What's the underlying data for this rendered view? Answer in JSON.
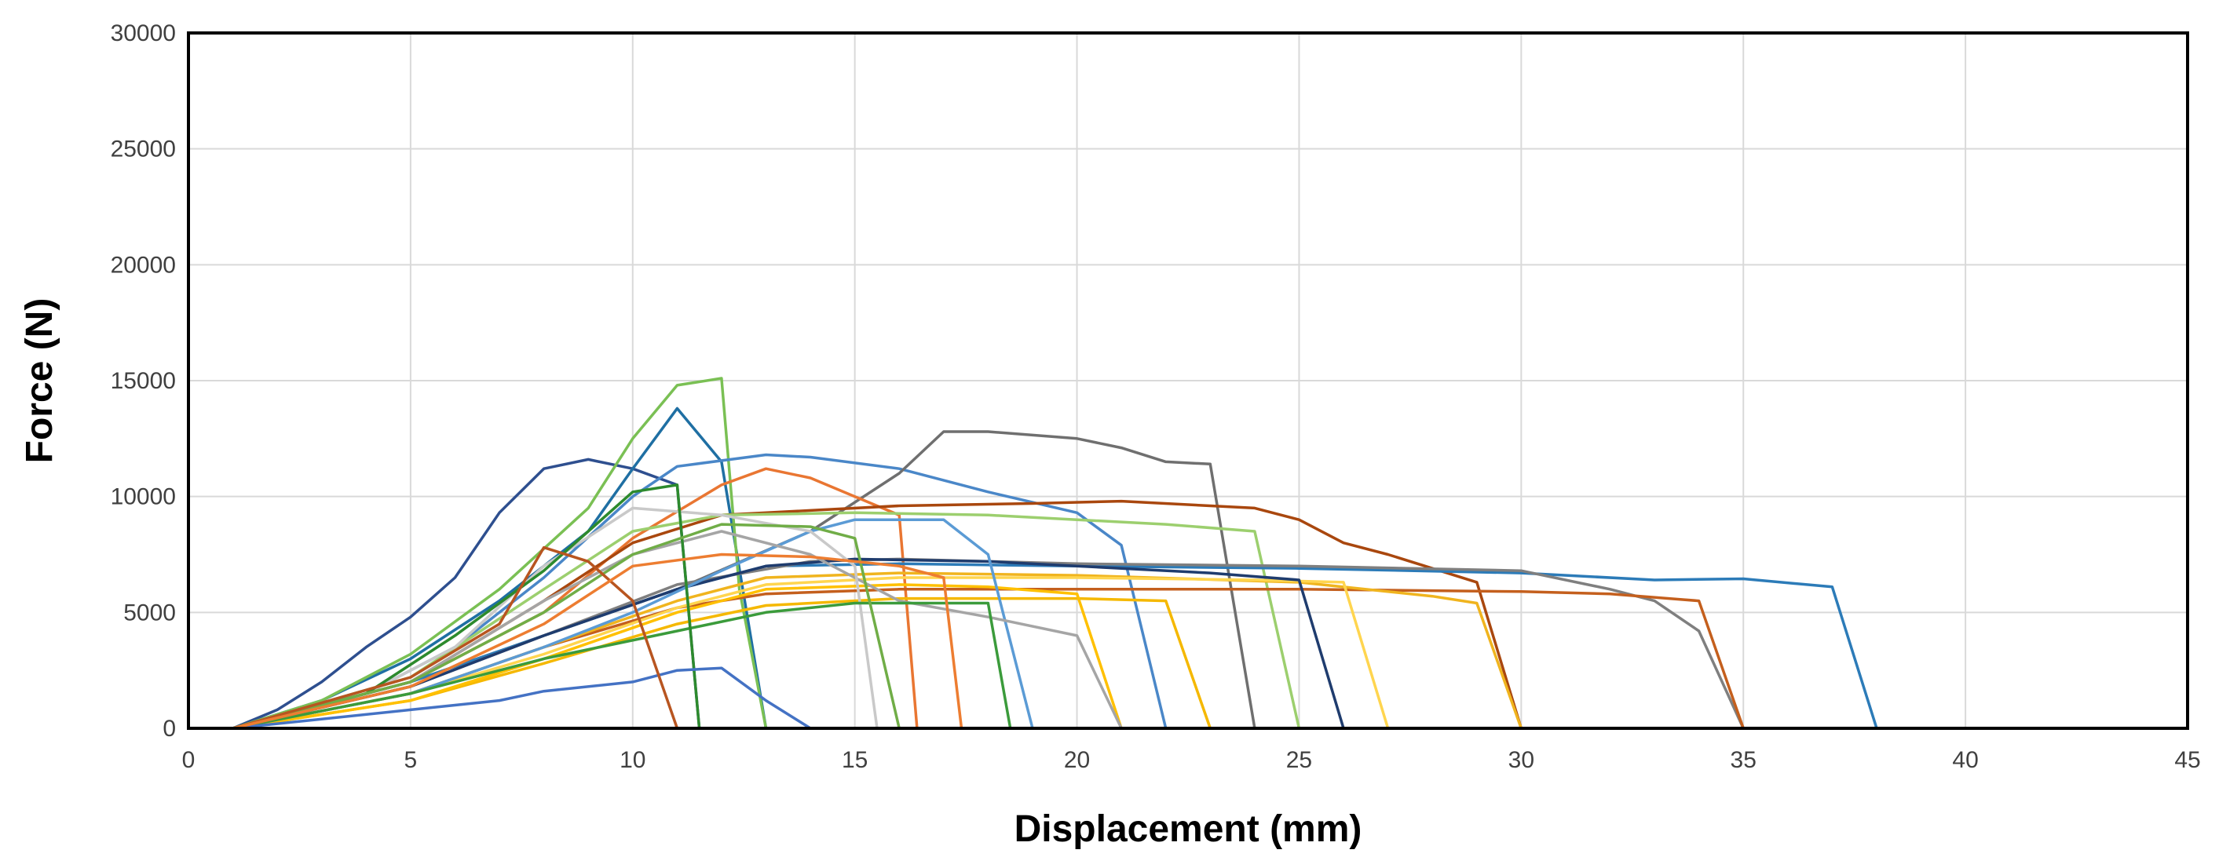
{
  "chart_data": {
    "type": "line",
    "title": "",
    "xlabel": "Displacement (mm)",
    "ylabel": "Force (N)",
    "xlim": [
      0,
      45
    ],
    "ylim": [
      0,
      30000
    ],
    "x_ticks": [
      0,
      5,
      10,
      15,
      20,
      25,
      30,
      35,
      40,
      45
    ],
    "y_ticks": [
      0,
      5000,
      10000,
      15000,
      20000,
      25000,
      30000
    ],
    "x_tick_labels": [
      "0",
      "5",
      "10",
      "15",
      "20",
      "25",
      "30",
      "35",
      "40",
      "45"
    ],
    "y_tick_labels": [
      "0",
      "5000",
      "10000",
      "15000",
      "20000",
      "25000",
      "30000"
    ],
    "grid": true,
    "legend": "none",
    "series": [
      {
        "color": "#2e4f8f",
        "points": [
          [
            1,
            0
          ],
          [
            2,
            800
          ],
          [
            3,
            2000
          ],
          [
            4,
            3500
          ],
          [
            5,
            4800
          ],
          [
            6,
            6500
          ],
          [
            7,
            9300
          ],
          [
            8,
            11200
          ],
          [
            9,
            11600
          ],
          [
            10,
            11200
          ],
          [
            11,
            10500
          ],
          [
            11.5,
            0
          ]
        ]
      },
      {
        "color": "#1f6fa3",
        "points": [
          [
            1,
            0
          ],
          [
            3,
            1200
          ],
          [
            5,
            3000
          ],
          [
            7,
            5500
          ],
          [
            9,
            8500
          ],
          [
            10,
            11200
          ],
          [
            11,
            13800
          ],
          [
            12,
            11500
          ],
          [
            13,
            0
          ]
        ]
      },
      {
        "color": "#7ac054",
        "points": [
          [
            1,
            0
          ],
          [
            3,
            1200
          ],
          [
            5,
            3200
          ],
          [
            7,
            6000
          ],
          [
            9,
            9500
          ],
          [
            10,
            12500
          ],
          [
            11,
            14800
          ],
          [
            12,
            15100
          ],
          [
            12.4,
            6000
          ],
          [
            13,
            0
          ]
        ]
      },
      {
        "color": "#4a87c8",
        "points": [
          [
            1,
            0
          ],
          [
            4,
            1500
          ],
          [
            6,
            3500
          ],
          [
            8,
            6500
          ],
          [
            10,
            10000
          ],
          [
            11,
            11300
          ],
          [
            13,
            11800
          ],
          [
            14,
            11700
          ],
          [
            16,
            11200
          ],
          [
            18,
            10200
          ],
          [
            20,
            9300
          ],
          [
            21,
            7900
          ],
          [
            22,
            0
          ]
        ]
      },
      {
        "color": "#6f6f6f",
        "points": [
          [
            1,
            0
          ],
          [
            5,
            2000
          ],
          [
            8,
            4000
          ],
          [
            11,
            6000
          ],
          [
            14,
            8500
          ],
          [
            16,
            11000
          ],
          [
            17,
            12800
          ],
          [
            18,
            12800
          ],
          [
            20,
            12500
          ],
          [
            21,
            12100
          ],
          [
            22,
            11500
          ],
          [
            23,
            11400
          ],
          [
            24,
            0
          ]
        ]
      },
      {
        "color": "#e97632",
        "points": [
          [
            1,
            0
          ],
          [
            5,
            2000
          ],
          [
            8,
            5000
          ],
          [
            10,
            8200
          ],
          [
            12,
            10500
          ],
          [
            13,
            11200
          ],
          [
            14,
            10800
          ],
          [
            15,
            10000
          ],
          [
            16,
            9200
          ],
          [
            16.4,
            0
          ]
        ]
      },
      {
        "color": "#a9470e",
        "points": [
          [
            1,
            0
          ],
          [
            5,
            2000
          ],
          [
            8,
            5500
          ],
          [
            10,
            8000
          ],
          [
            12,
            9200
          ],
          [
            14,
            9400
          ],
          [
            16,
            9600
          ],
          [
            19,
            9700
          ],
          [
            21,
            9800
          ],
          [
            24,
            9500
          ],
          [
            25,
            9000
          ],
          [
            26,
            8000
          ],
          [
            27,
            7500
          ],
          [
            29,
            6300
          ],
          [
            30,
            0
          ]
        ]
      },
      {
        "color": "#9ccf6e",
        "points": [
          [
            1,
            0
          ],
          [
            5,
            2200
          ],
          [
            8,
            6000
          ],
          [
            10,
            8500
          ],
          [
            12,
            9200
          ],
          [
            15,
            9300
          ],
          [
            18,
            9200
          ],
          [
            20,
            9000
          ],
          [
            22,
            8800
          ],
          [
            24,
            8500
          ],
          [
            25,
            0
          ]
        ]
      },
      {
        "color": "#2c7bb8",
        "points": [
          [
            1,
            0
          ],
          [
            5,
            2000
          ],
          [
            8,
            4000
          ],
          [
            11,
            6000
          ],
          [
            13,
            7000
          ],
          [
            16,
            7100
          ],
          [
            20,
            7000
          ],
          [
            25,
            6900
          ],
          [
            30,
            6700
          ],
          [
            33,
            6400
          ],
          [
            35,
            6450
          ],
          [
            37,
            6100
          ],
          [
            38,
            0
          ]
        ]
      },
      {
        "color": "#7f7f7f",
        "points": [
          [
            1,
            0
          ],
          [
            5,
            1800
          ],
          [
            8,
            4000
          ],
          [
            11,
            6200
          ],
          [
            14,
            7200
          ],
          [
            16,
            7300
          ],
          [
            20,
            7100
          ],
          [
            25,
            7000
          ],
          [
            30,
            6800
          ],
          [
            32,
            6000
          ],
          [
            33,
            5500
          ],
          [
            34,
            4200
          ],
          [
            35,
            0
          ]
        ]
      },
      {
        "color": "#c45f1d",
        "points": [
          [
            1,
            0
          ],
          [
            5,
            1500
          ],
          [
            8,
            3500
          ],
          [
            11,
            5200
          ],
          [
            13,
            5800
          ],
          [
            16,
            6000
          ],
          [
            20,
            6000
          ],
          [
            25,
            6000
          ],
          [
            30,
            5900
          ],
          [
            32,
            5800
          ],
          [
            34,
            5500
          ],
          [
            35,
            0
          ]
        ]
      },
      {
        "color": "#f0b41e",
        "points": [
          [
            1,
            0
          ],
          [
            5,
            1500
          ],
          [
            8,
            3500
          ],
          [
            11,
            5500
          ],
          [
            13,
            6500
          ],
          [
            16,
            6700
          ],
          [
            20,
            6600
          ],
          [
            25,
            6300
          ],
          [
            28,
            5700
          ],
          [
            29,
            5400
          ],
          [
            30,
            0
          ]
        ]
      },
      {
        "color": "#ffd54f",
        "points": [
          [
            1,
            0
          ],
          [
            5,
            1500
          ],
          [
            8,
            3200
          ],
          [
            11,
            5200
          ],
          [
            13,
            6200
          ],
          [
            16,
            6500
          ],
          [
            20,
            6500
          ],
          [
            24,
            6400
          ],
          [
            26,
            6300
          ],
          [
            27,
            0
          ]
        ]
      },
      {
        "color": "#1f3c6e",
        "points": [
          [
            1,
            0
          ],
          [
            5,
            1800
          ],
          [
            8,
            4000
          ],
          [
            11,
            6000
          ],
          [
            13,
            7000
          ],
          [
            15,
            7300
          ],
          [
            18,
            7200
          ],
          [
            21,
            6900
          ],
          [
            23,
            6700
          ],
          [
            25,
            6400
          ],
          [
            26,
            0
          ]
        ]
      },
      {
        "color": "#f5b800",
        "points": [
          [
            1,
            0
          ],
          [
            5,
            1200
          ],
          [
            8,
            2800
          ],
          [
            11,
            4500
          ],
          [
            13,
            5300
          ],
          [
            16,
            5600
          ],
          [
            20,
            5600
          ],
          [
            22,
            5500
          ],
          [
            23,
            0
          ]
        ]
      },
      {
        "color": "#ffc000",
        "points": [
          [
            1,
            0
          ],
          [
            5,
            1200
          ],
          [
            8,
            3000
          ],
          [
            11,
            5000
          ],
          [
            13,
            6000
          ],
          [
            16,
            6200
          ],
          [
            18,
            6100
          ],
          [
            20,
            5800
          ],
          [
            21,
            0
          ]
        ]
      },
      {
        "color": "#5b9bd5",
        "points": [
          [
            1,
            0
          ],
          [
            5,
            1500
          ],
          [
            8,
            3500
          ],
          [
            10,
            5000
          ],
          [
            12,
            6800
          ],
          [
            14,
            8500
          ],
          [
            15,
            9000
          ],
          [
            17,
            9000
          ],
          [
            18,
            7500
          ],
          [
            19,
            0
          ]
        ]
      },
      {
        "color": "#a5a5a5",
        "points": [
          [
            1,
            0
          ],
          [
            5,
            2000
          ],
          [
            8,
            5500
          ],
          [
            10,
            7500
          ],
          [
            12,
            8500
          ],
          [
            14,
            7500
          ],
          [
            16,
            5500
          ],
          [
            18,
            4800
          ],
          [
            20,
            4000
          ],
          [
            21,
            0
          ]
        ]
      },
      {
        "color": "#c9c9c9",
        "points": [
          [
            1,
            0
          ],
          [
            4,
            1500
          ],
          [
            6,
            3500
          ],
          [
            8,
            7000
          ],
          [
            10,
            9500
          ],
          [
            12,
            9200
          ],
          [
            14,
            8500
          ],
          [
            15,
            7000
          ],
          [
            15.5,
            0
          ]
        ]
      },
      {
        "color": "#3b9b3b",
        "points": [
          [
            1,
            0
          ],
          [
            5,
            1500
          ],
          [
            8,
            3000
          ],
          [
            11,
            4200
          ],
          [
            13,
            5000
          ],
          [
            15,
            5400
          ],
          [
            18,
            5400
          ],
          [
            18.5,
            0
          ]
        ]
      },
      {
        "color": "#2d8a2d",
        "points": [
          [
            1,
            0
          ],
          [
            4,
            1500
          ],
          [
            6,
            4000
          ],
          [
            8,
            6800
          ],
          [
            10,
            10200
          ],
          [
            11,
            10500
          ],
          [
            11.5,
            0
          ]
        ]
      },
      {
        "color": "#4472c4",
        "points": [
          [
            1,
            0
          ],
          [
            5,
            800
          ],
          [
            7,
            1200
          ],
          [
            8,
            1600
          ],
          [
            10,
            2000
          ],
          [
            11,
            2500
          ],
          [
            12,
            2600
          ],
          [
            13,
            1200
          ],
          [
            14,
            0
          ]
        ]
      },
      {
        "color": "#70ad47",
        "points": [
          [
            1,
            0
          ],
          [
            5,
            2000
          ],
          [
            8,
            5000
          ],
          [
            10,
            7500
          ],
          [
            12,
            8800
          ],
          [
            14,
            8700
          ],
          [
            15,
            8200
          ],
          [
            16,
            0
          ]
        ]
      },
      {
        "color": "#b85520",
        "points": [
          [
            1,
            0
          ],
          [
            5,
            2200
          ],
          [
            7,
            4500
          ],
          [
            8,
            7800
          ],
          [
            9,
            7200
          ],
          [
            10,
            5500
          ],
          [
            11,
            0
          ]
        ]
      },
      {
        "color": "#ed7d31",
        "points": [
          [
            1,
            0
          ],
          [
            5,
            1800
          ],
          [
            8,
            4500
          ],
          [
            10,
            7000
          ],
          [
            12,
            7500
          ],
          [
            14,
            7400
          ],
          [
            16,
            7000
          ],
          [
            17,
            6500
          ],
          [
            17.4,
            0
          ]
        ]
      },
      {
        "color": "#264478",
        "points": [
          [
            0,
            0
          ],
          [
            45,
            0
          ]
        ]
      },
      {
        "color": "#7a9b3a",
        "points": [
          [
            1,
            0
          ],
          [
            40,
            0
          ]
        ]
      }
    ]
  }
}
